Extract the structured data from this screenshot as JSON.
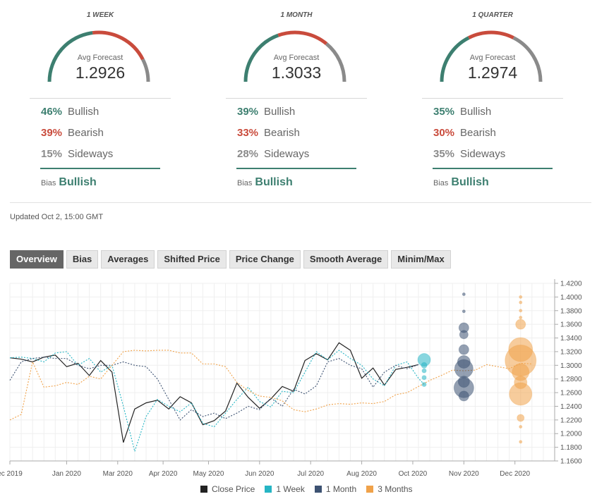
{
  "gauges": [
    {
      "period": "1 WEEK",
      "avg_label": "Avg Forecast",
      "avg": "1.2926",
      "bullish_pct": "46%",
      "bullish_label": "Bullish",
      "bullish": 46,
      "bearish_pct": "39%",
      "bearish_label": "Bearish",
      "bearish": 39,
      "sideways_pct": "15%",
      "sideways_label": "Sideways",
      "sideways": 15,
      "bias_label": "Bias",
      "bias": "Bullish"
    },
    {
      "period": "1 MONTH",
      "avg_label": "Avg Forecast",
      "avg": "1.3033",
      "bullish_pct": "39%",
      "bullish_label": "Bullish",
      "bullish": 39,
      "bearish_pct": "33%",
      "bearish_label": "Bearish",
      "bearish": 33,
      "sideways_pct": "28%",
      "sideways_label": "Sideways",
      "sideways": 28,
      "bias_label": "Bias",
      "bias": "Bullish"
    },
    {
      "period": "1 QUARTER",
      "avg_label": "Avg Forecast",
      "avg": "1.2974",
      "bullish_pct": "35%",
      "bullish_label": "Bullish",
      "bullish": 35,
      "bearish_pct": "30%",
      "bearish_label": "Bearish",
      "bearish": 30,
      "sideways_pct": "35%",
      "sideways_label": "Sideways",
      "sideways": 35,
      "bias_label": "Bias",
      "bias": "Bullish"
    }
  ],
  "colors": {
    "bullish": "#3d7f70",
    "bearish": "#c94b3c",
    "sideways": "#8a8a8a",
    "close": "#222222",
    "week": "#26b5c4",
    "month": "#3d5272",
    "quarter": "#f0a24a"
  },
  "updated": "Updated Oct 2, 15:00 GMT",
  "tabs": [
    "Overview",
    "Bias",
    "Averages",
    "Shifted Price",
    "Price Change",
    "Smooth Average",
    "Minim/Max"
  ],
  "chart_data": {
    "type": "line",
    "x_ticks": [
      "ec 2019",
      "Jan 2020",
      "Mar 2020",
      "Apr 2020",
      "May 2020",
      "Jun 2020",
      "Jul 2020",
      "Aug 2020",
      "Oct 2020",
      "Nov 2020",
      "Dec 2020"
    ],
    "y_ticks": [
      "1.4200",
      "1.4000",
      "1.3800",
      "1.3600",
      "1.3400",
      "1.3200",
      "1.3000",
      "1.2800",
      "1.2600",
      "1.2400",
      "1.2200",
      "1.2000",
      "1.1800",
      "1.1600"
    ],
    "ylim": [
      1.16,
      1.42
    ],
    "xlim": [
      0,
      48
    ],
    "x_tick_positions": [
      0,
      5,
      9.5,
      13.5,
      17.5,
      22,
      26.5,
      31,
      35.5,
      40,
      44.5
    ],
    "legend": [
      "Close Price",
      "1 Week",
      "1 Month",
      "3 Months"
    ],
    "series": [
      {
        "name": "Close Price",
        "style": "solid",
        "x": [
          0,
          1,
          2,
          3,
          4,
          5,
          6,
          7,
          8,
          9,
          10,
          11,
          12,
          13,
          14,
          15,
          16,
          17,
          18,
          19,
          20,
          21,
          22,
          23,
          24,
          25,
          26,
          27,
          28,
          29,
          30,
          31,
          32,
          33,
          34,
          35,
          36
        ],
        "y": [
          1.311,
          1.309,
          1.305,
          1.312,
          1.315,
          1.298,
          1.303,
          1.285,
          1.307,
          1.29,
          1.187,
          1.236,
          1.245,
          1.249,
          1.236,
          1.254,
          1.245,
          1.213,
          1.219,
          1.233,
          1.274,
          1.253,
          1.237,
          1.251,
          1.269,
          1.262,
          1.307,
          1.317,
          1.308,
          1.333,
          1.322,
          1.281,
          1.296,
          1.271,
          1.294,
          1.297,
          1.301
        ]
      },
      {
        "name": "1 Week",
        "style": "dotted",
        "x": [
          0,
          1,
          2,
          3,
          4,
          5,
          6,
          7,
          8,
          9,
          10,
          11,
          12,
          13,
          14,
          15,
          16,
          17,
          18,
          19,
          20,
          21,
          22,
          23,
          24,
          25,
          26,
          27,
          28,
          29,
          30,
          31,
          32,
          33,
          34,
          35,
          36,
          36.5
        ],
        "y": [
          1.311,
          1.312,
          1.31,
          1.305,
          1.318,
          1.32,
          1.3,
          1.31,
          1.29,
          1.3,
          1.24,
          1.174,
          1.225,
          1.25,
          1.24,
          1.232,
          1.245,
          1.215,
          1.21,
          1.23,
          1.25,
          1.268,
          1.247,
          1.239,
          1.262,
          1.26,
          1.29,
          1.32,
          1.308,
          1.322,
          1.31,
          1.3,
          1.28,
          1.27,
          1.3,
          1.305,
          1.281,
          1.272
        ]
      },
      {
        "name": "1 Month",
        "style": "dotted",
        "x": [
          0,
          1,
          2,
          3,
          4,
          5,
          6,
          7,
          8,
          9,
          10,
          11,
          12,
          13,
          14,
          15,
          16,
          17,
          18,
          19,
          20,
          21,
          22,
          23,
          24,
          25,
          26,
          27,
          28,
          29,
          30,
          31,
          32,
          33,
          34,
          35,
          36
        ],
        "y": [
          1.278,
          1.305,
          1.31,
          1.312,
          1.31,
          1.31,
          1.3,
          1.295,
          1.3,
          1.3,
          1.305,
          1.3,
          1.298,
          1.28,
          1.25,
          1.22,
          1.235,
          1.225,
          1.23,
          1.222,
          1.23,
          1.24,
          1.235,
          1.252,
          1.24,
          1.265,
          1.258,
          1.27,
          1.305,
          1.31,
          1.3,
          1.295,
          1.268,
          1.29,
          1.3,
          1.295,
          1.301
        ]
      },
      {
        "name": "3 Months",
        "style": "dotted",
        "x": [
          0,
          1,
          2,
          3,
          4,
          5,
          6,
          7,
          8,
          9,
          10,
          11,
          12,
          13,
          14,
          15,
          16,
          17,
          18,
          19,
          20,
          21,
          22,
          23,
          24,
          25,
          26,
          27,
          28,
          29,
          30,
          31,
          32,
          33,
          34,
          35,
          36,
          37,
          38,
          39,
          40,
          41,
          42,
          43,
          44,
          45,
          46
        ],
        "y": [
          1.22,
          1.228,
          1.305,
          1.268,
          1.27,
          1.275,
          1.272,
          1.284,
          1.28,
          1.3,
          1.32,
          1.322,
          1.321,
          1.322,
          1.322,
          1.318,
          1.318,
          1.302,
          1.302,
          1.298,
          1.275,
          1.263,
          1.255,
          1.253,
          1.248,
          1.235,
          1.232,
          1.236,
          1.242,
          1.244,
          1.243,
          1.245,
          1.244,
          1.247,
          1.257,
          1.26,
          1.269,
          1.278,
          1.285,
          1.293,
          1.292,
          1.293,
          1.301,
          1.298,
          1.295,
          1.303,
          1.302
        ]
      }
    ],
    "bubbles": [
      {
        "series": "1 Week",
        "x": 36.5,
        "points": [
          [
            1.308,
            9
          ],
          [
            1.3,
            4
          ],
          [
            1.292,
            3
          ],
          [
            1.282,
            3
          ],
          [
            1.272,
            3
          ]
        ]
      },
      {
        "series": "1 Month",
        "x": 40,
        "points": [
          [
            1.404,
            2
          ],
          [
            1.379,
            2
          ],
          [
            1.355,
            7
          ],
          [
            1.345,
            6
          ],
          [
            1.323,
            7
          ],
          [
            1.305,
            9
          ],
          [
            1.295,
            13
          ],
          [
            1.276,
            8
          ],
          [
            1.267,
            14
          ],
          [
            1.255,
            7
          ]
        ]
      },
      {
        "series": "3 Months",
        "x": 45,
        "points": [
          [
            1.4,
            2
          ],
          [
            1.392,
            2
          ],
          [
            1.38,
            2
          ],
          [
            1.37,
            2
          ],
          [
            1.36,
            7
          ],
          [
            1.323,
            17
          ],
          [
            1.307,
            22
          ],
          [
            1.29,
            12
          ],
          [
            1.275,
            9
          ],
          [
            1.258,
            16
          ],
          [
            1.223,
            5
          ],
          [
            1.21,
            2
          ],
          [
            1.188,
            2
          ]
        ]
      }
    ]
  }
}
